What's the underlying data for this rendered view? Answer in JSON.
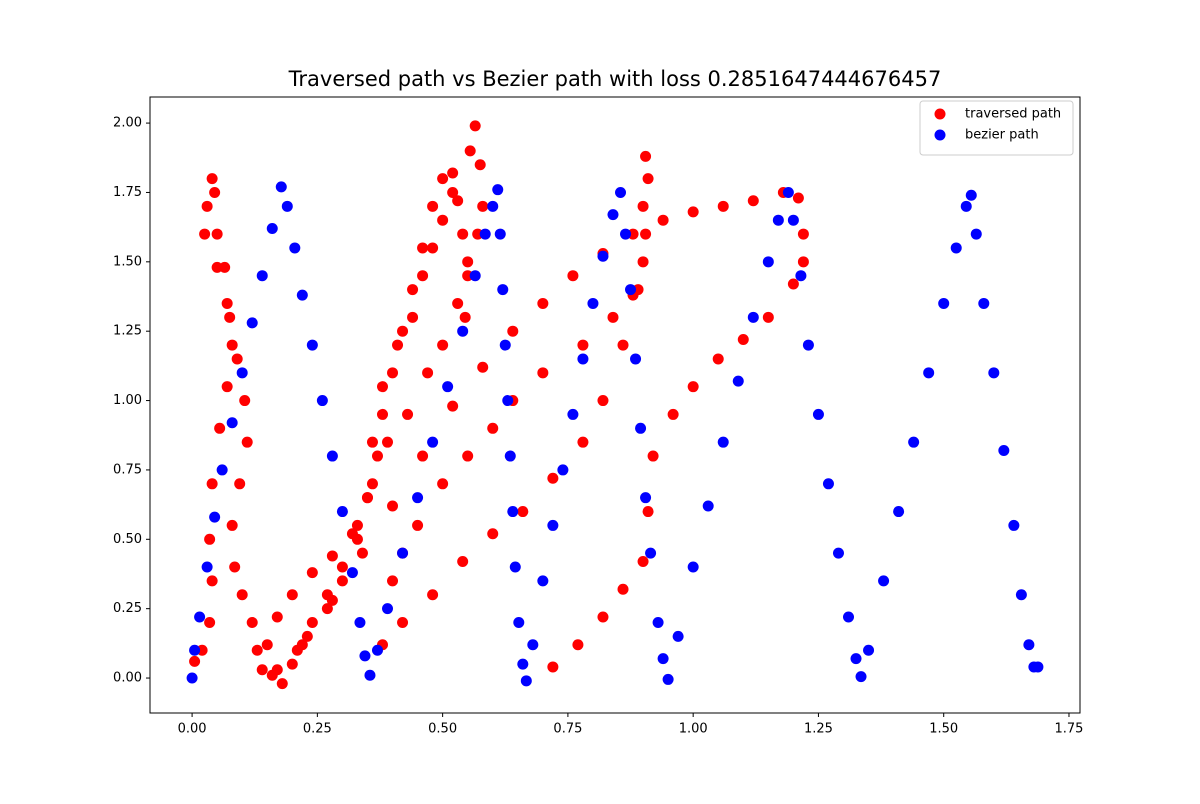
{
  "chart_data": {
    "type": "scatter",
    "title": "Traversed path vs Bezier path with loss 0.2851647444676457",
    "xlim": [
      -0.084,
      1.772
    ],
    "ylim": [
      -0.126,
      2.094
    ],
    "xticks": [
      {
        "value": 0,
        "label": "0.00"
      },
      {
        "value": 0.25,
        "label": "0.25"
      },
      {
        "value": 0.5,
        "label": "0.50"
      },
      {
        "value": 0.75,
        "label": "0.75"
      },
      {
        "value": 1,
        "label": "1.00"
      },
      {
        "value": 1.25,
        "label": "1.25"
      },
      {
        "value": 1.5,
        "label": "1.50"
      },
      {
        "value": 1.75,
        "label": "1.75"
      }
    ],
    "yticks": [
      {
        "value": 0,
        "label": "0.00"
      },
      {
        "value": 0.25,
        "label": "0.25"
      },
      {
        "value": 0.5,
        "label": "0.50"
      },
      {
        "value": 0.75,
        "label": "0.75"
      },
      {
        "value": 1,
        "label": "1.00"
      },
      {
        "value": 1.25,
        "label": "1.25"
      },
      {
        "value": 1.5,
        "label": "1.50"
      },
      {
        "value": 1.75,
        "label": "1.75"
      },
      {
        "value": 2,
        "label": "2.00"
      }
    ],
    "legend": "upper right",
    "series": [
      {
        "name": "traversed path",
        "color": "#ff0000",
        "x": [
          0.005,
          0.02,
          0.035,
          0.04,
          0.035,
          0.04,
          0.055,
          0.07,
          0.08,
          0.07,
          0.05,
          0.025,
          0.03,
          0.04,
          0.045,
          0.05,
          0.065,
          0.075,
          0.09,
          0.105,
          0.11,
          0.095,
          0.08,
          0.085,
          0.1,
          0.12,
          0.13,
          0.14,
          0.16,
          0.17,
          0.15,
          0.17,
          0.2,
          0.24,
          0.28,
          0.32,
          0.35,
          0.37,
          0.38,
          0.4,
          0.42,
          0.44,
          0.46,
          0.48,
          0.5,
          0.52,
          0.53,
          0.54,
          0.55,
          0.545,
          0.18,
          0.2,
          0.23,
          0.27,
          0.3,
          0.33,
          0.35,
          0.36,
          0.38,
          0.41,
          0.44,
          0.46,
          0.48,
          0.5,
          0.52,
          0.555,
          0.565,
          0.575,
          0.58,
          0.57,
          0.55,
          0.53,
          0.5,
          0.47,
          0.43,
          0.39,
          0.36,
          0.33,
          0.3,
          0.27,
          0.24,
          0.21,
          0.22,
          0.28,
          0.34,
          0.4,
          0.46,
          0.52,
          0.58,
          0.64,
          0.7,
          0.76,
          0.82,
          0.88,
          0.94,
          1.0,
          1.06,
          1.12,
          1.18,
          1.21,
          1.22,
          1.22,
          1.2,
          1.15,
          1.1,
          1.05,
          1.0,
          0.96,
          0.92,
          0.91,
          0.9,
          0.86,
          0.82,
          0.77,
          0.72,
          0.38,
          0.42,
          0.48,
          0.54,
          0.6,
          0.66,
          0.72,
          0.78,
          0.82,
          0.86,
          0.89,
          0.905,
          0.91,
          0.905,
          0.9,
          0.9,
          0.88,
          0.84,
          0.78,
          0.7,
          0.64,
          0.6,
          0.55,
          0.5,
          0.45,
          0.42,
          0.4
        ],
        "y": [
          0.06,
          0.1,
          0.2,
          0.35,
          0.5,
          0.7,
          0.9,
          1.05,
          1.2,
          1.35,
          1.48,
          1.6,
          1.7,
          1.8,
          1.75,
          1.6,
          1.48,
          1.3,
          1.15,
          1.0,
          0.85,
          0.7,
          0.55,
          0.4,
          0.3,
          0.2,
          0.1,
          0.03,
          0.01,
          0.03,
          0.12,
          0.22,
          0.3,
          0.38,
          0.44,
          0.52,
          0.65,
          0.8,
          0.95,
          1.1,
          1.25,
          1.4,
          1.55,
          1.7,
          1.8,
          1.82,
          1.72,
          1.6,
          1.45,
          1.3,
          -0.02,
          0.05,
          0.15,
          0.25,
          0.35,
          0.5,
          0.65,
          0.85,
          1.05,
          1.2,
          1.3,
          1.45,
          1.55,
          1.65,
          1.75,
          1.9,
          1.99,
          1.85,
          1.7,
          1.6,
          1.5,
          1.35,
          1.2,
          1.1,
          0.95,
          0.85,
          0.7,
          0.55,
          0.4,
          0.3,
          0.2,
          0.1,
          0.12,
          0.28,
          0.45,
          0.62,
          0.8,
          0.98,
          1.12,
          1.25,
          1.35,
          1.45,
          1.53,
          1.6,
          1.65,
          1.68,
          1.7,
          1.72,
          1.75,
          1.73,
          1.6,
          1.5,
          1.42,
          1.3,
          1.22,
          1.15,
          1.05,
          0.95,
          0.8,
          0.6,
          0.42,
          0.32,
          0.22,
          0.12,
          0.04,
          0.12,
          0.2,
          0.3,
          0.42,
          0.52,
          0.6,
          0.72,
          0.85,
          1.0,
          1.2,
          1.4,
          1.6,
          1.8,
          1.88,
          1.7,
          1.5,
          1.38,
          1.3,
          1.2,
          1.1,
          1.0,
          0.9,
          0.8,
          0.7,
          0.55,
          0.45,
          0.35
        ]
      },
      {
        "name": "bezier path",
        "color": "#0000ff",
        "x": [
          0,
          0.005,
          0.015,
          0.03,
          0.045,
          0.06,
          0.08,
          0.1,
          0.12,
          0.14,
          0.16,
          0.178,
          0.19,
          0.205,
          0.22,
          0.24,
          0.26,
          0.28,
          0.3,
          0.32,
          0.335,
          0.345,
          0.355,
          0.37,
          0.39,
          0.42,
          0.45,
          0.48,
          0.51,
          0.54,
          0.565,
          0.585,
          0.6,
          0.61,
          0.615,
          0.62,
          0.625,
          0.63,
          0.635,
          0.64,
          0.645,
          0.652,
          0.66,
          0.667,
          0.68,
          0.7,
          0.72,
          0.74,
          0.76,
          0.78,
          0.8,
          0.82,
          0.84,
          0.855,
          0.865,
          0.875,
          0.885,
          0.895,
          0.905,
          0.915,
          0.93,
          0.94,
          0.95,
          0.97,
          1.0,
          1.03,
          1.06,
          1.09,
          1.12,
          1.15,
          1.17,
          1.19,
          1.2,
          1.215,
          1.23,
          1.25,
          1.27,
          1.29,
          1.31,
          1.325,
          1.335,
          1.35,
          1.38,
          1.41,
          1.44,
          1.47,
          1.5,
          1.525,
          1.545,
          1.555,
          1.565,
          1.58,
          1.6,
          1.62,
          1.64,
          1.655,
          1.67,
          1.68,
          1.688
        ],
        "y": [
          0,
          0.1,
          0.22,
          0.4,
          0.58,
          0.75,
          0.92,
          1.1,
          1.28,
          1.45,
          1.62,
          1.77,
          1.7,
          1.55,
          1.38,
          1.2,
          1.0,
          0.8,
          0.6,
          0.38,
          0.2,
          0.08,
          0.01,
          0.1,
          0.25,
          0.45,
          0.65,
          0.85,
          1.05,
          1.25,
          1.45,
          1.6,
          1.7,
          1.76,
          1.6,
          1.4,
          1.2,
          1.0,
          0.8,
          0.6,
          0.4,
          0.2,
          0.05,
          -0.01,
          0.12,
          0.35,
          0.55,
          0.75,
          0.95,
          1.15,
          1.35,
          1.52,
          1.67,
          1.75,
          1.6,
          1.4,
          1.15,
          0.9,
          0.65,
          0.45,
          0.2,
          0.07,
          -0.005,
          0.15,
          0.4,
          0.62,
          0.85,
          1.07,
          1.3,
          1.5,
          1.65,
          1.75,
          1.65,
          1.45,
          1.2,
          0.95,
          0.7,
          0.45,
          0.22,
          0.07,
          0.005,
          0.1,
          0.35,
          0.6,
          0.85,
          1.1,
          1.35,
          1.55,
          1.7,
          1.74,
          1.6,
          1.35,
          1.1,
          0.82,
          0.55,
          0.3,
          0.12,
          0.04,
          0.04
        ]
      }
    ]
  }
}
